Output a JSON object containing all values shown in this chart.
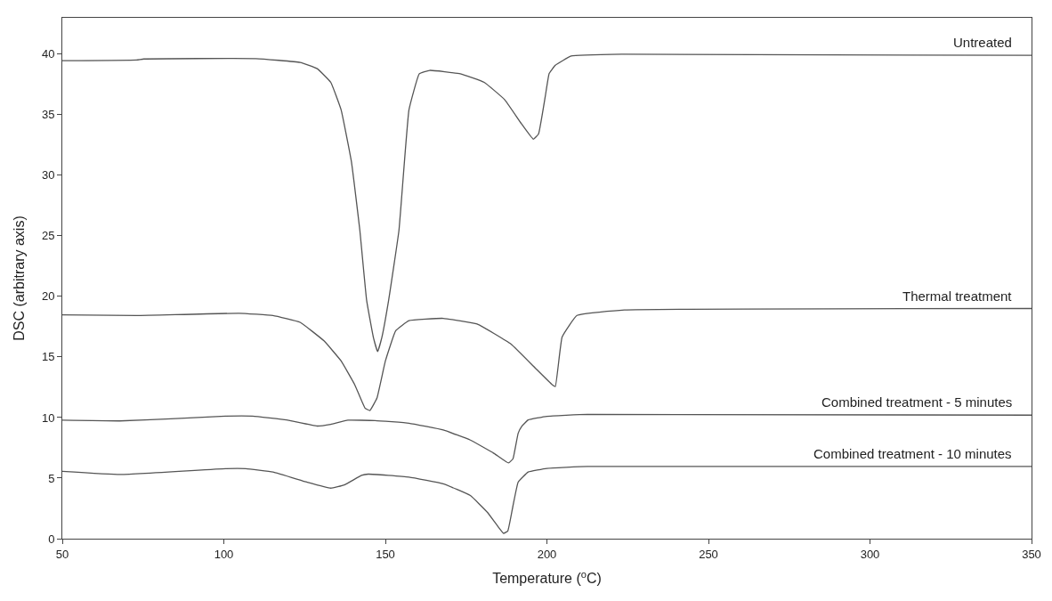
{
  "chart_data": {
    "type": "line",
    "xlabel": "Temperature ($^{o}$C)",
    "ylabel": "DSC (arbitrary axis)",
    "xlim": [
      50,
      350
    ],
    "xticks": [
      50,
      100,
      150,
      200,
      250,
      300,
      350
    ],
    "ylim": [
      0,
      43
    ],
    "yticks": [
      0,
      5,
      10,
      15,
      20,
      25,
      30,
      35,
      40
    ],
    "legend": false,
    "marker": "none",
    "line_style": "solid",
    "series": [
      {
        "name": "Untreated",
        "color": "#555555",
        "x": [
          50,
          73,
          75.2,
          109.9,
          123.6,
          128.9,
          133.1,
          136.3,
          139.5,
          142.1,
          144.2,
          146.3,
          147.6,
          148.9,
          151,
          154.2,
          157.3,
          160.5,
          163.7,
          173.2,
          180.6,
          186.9,
          192.1,
          195.8,
          197.4,
          199.5,
          200.7,
          202.6,
          207.5,
          223.2,
          350
        ],
        "values": [
          39.46,
          39.52,
          39.6,
          39.63,
          39.32,
          38.8,
          37.67,
          35.4,
          31.1,
          25.45,
          19.67,
          16.6,
          15.44,
          16.6,
          19.67,
          25.45,
          35.4,
          38.38,
          38.66,
          38.38,
          37.67,
          36.25,
          34.26,
          32.98,
          33.41,
          36.53,
          38.4,
          39.08,
          39.84,
          39.99,
          39.9
        ]
      },
      {
        "name": "Thermal treatment",
        "color": "#555555",
        "x": [
          50,
          73,
          104.7,
          115.2,
          123.6,
          131,
          136.3,
          140.5,
          143.7,
          145.2,
          147.4,
          150,
          153.2,
          157.3,
          167.9,
          178.4,
          188.9,
          196.3,
          201.6,
          202.6,
          204.7,
          209.3,
          224,
          350
        ],
        "values": [
          18.47,
          18.42,
          18.61,
          18.42,
          17.86,
          16.33,
          14.67,
          12.72,
          10.78,
          10.58,
          11.61,
          14.67,
          17.17,
          18.0,
          18.19,
          17.72,
          16.06,
          14.11,
          12.72,
          12.56,
          16.65,
          18.43,
          18.88,
          19.0
        ]
      },
      {
        "name": "Combined treatment - 5 minutes",
        "color": "#555555",
        "x": [
          50,
          67.8,
          83.6,
          100.5,
          108.9,
          119.4,
          128.9,
          133.1,
          138.4,
          146.8,
          157.3,
          167.9,
          176.3,
          183.7,
          188.1,
          189.5,
          191.1,
          192.3,
          194.2,
          200,
          212.6,
          350
        ],
        "values": [
          9.78,
          9.72,
          9.89,
          10.11,
          10.11,
          9.8,
          9.3,
          9.44,
          9.78,
          9.75,
          9.53,
          8.97,
          8.14,
          7.03,
          6.25,
          6.6,
          8.7,
          9.3,
          9.8,
          10.1,
          10.26,
          10.2
        ]
      },
      {
        "name": "Combined treatment - 10 minutes",
        "color": "#555555",
        "x": [
          50,
          67.8,
          100.5,
          106.8,
          115.2,
          125.7,
          133.1,
          137.3,
          142.6,
          144.7,
          157.3,
          167.9,
          176.3,
          181.6,
          184.7,
          186.6,
          187.9,
          189.5,
          191.1,
          194.2,
          200,
          212.6,
          350
        ],
        "values": [
          5.56,
          5.3,
          5.78,
          5.78,
          5.5,
          4.67,
          4.17,
          4.44,
          5.22,
          5.33,
          5.08,
          4.53,
          3.56,
          2.17,
          1.06,
          0.44,
          0.64,
          2.72,
          4.67,
          5.5,
          5.8,
          5.96,
          5.96
        ]
      }
    ]
  }
}
